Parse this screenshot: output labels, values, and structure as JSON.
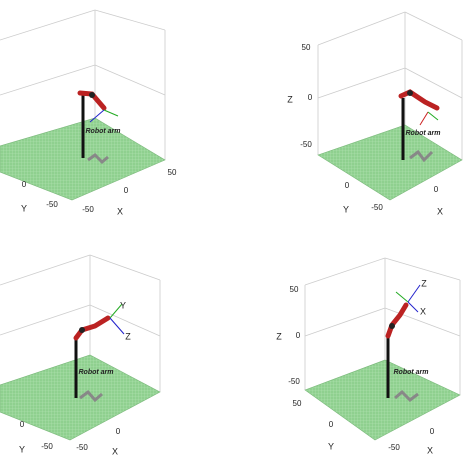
{
  "panels": [
    {
      "x_ticks": [
        "-50",
        "0",
        "50"
      ],
      "y_ticks": [
        "-50",
        "0"
      ],
      "x_label": "X",
      "y_label": "Y",
      "arm_label": "Robot arm"
    },
    {
      "x_ticks": [
        "0"
      ],
      "y_ticks": [
        "-50",
        "0"
      ],
      "z_ticks": [
        "50",
        "0",
        "-50"
      ],
      "x_label": "X",
      "y_label": "Y",
      "z_label": "Z",
      "arm_label": "Robot arm"
    },
    {
      "x_ticks": [
        "-50",
        "0"
      ],
      "y_ticks": [
        "-50",
        "0"
      ],
      "x_label": "X",
      "y_label": "Y",
      "arm_label": "Robot arm",
      "frame_labels": [
        "Y",
        "Z"
      ]
    },
    {
      "x_ticks": [
        "-50",
        "0"
      ],
      "y_ticks": [
        "50",
        "0"
      ],
      "z_ticks": [
        "50",
        "0",
        "-50"
      ],
      "x_label": "X",
      "y_label": "Y",
      "z_label": "Z",
      "arm_label": "Robot arm",
      "frame_labels": [
        "Z",
        "X"
      ]
    }
  ]
}
